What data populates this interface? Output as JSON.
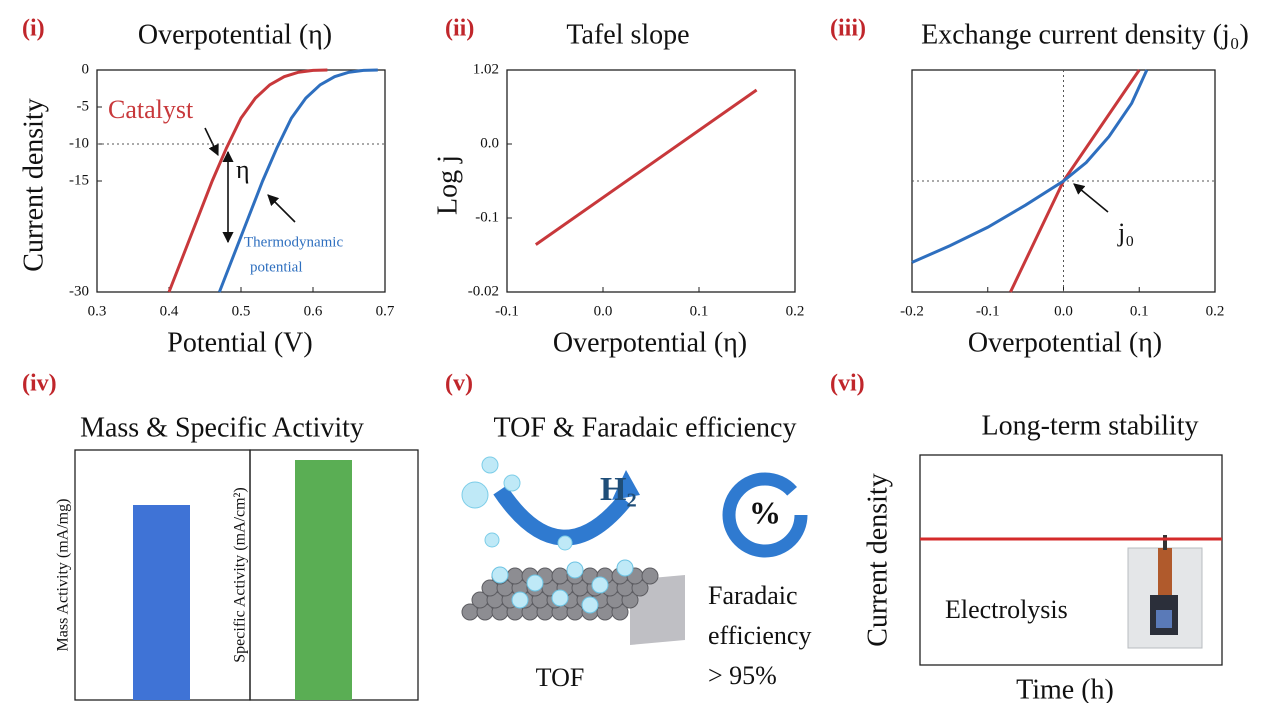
{
  "chart_data": [
    {
      "type": "line",
      "panel": "(i)",
      "title": "Overpotential (η)",
      "xlabel": "Potential (V)",
      "ylabel": "Current density",
      "xlim": [
        0.3,
        0.7
      ],
      "xticks": [
        0.3,
        0.4,
        0.5,
        0.6,
        0.7
      ],
      "ylim": [
        -30,
        0
      ],
      "yticks": [
        0,
        -5,
        -10,
        -15,
        -30
      ],
      "hline": -10,
      "series": [
        {
          "name": "Catalyst",
          "color": "#c8383b",
          "x": [
            0.4,
            0.42,
            0.44,
            0.46,
            0.48,
            0.5,
            0.52,
            0.54,
            0.56,
            0.58,
            0.6,
            0.62
          ],
          "values": [
            -30,
            -25,
            -20,
            -15,
            -10.5,
            -6.5,
            -3.8,
            -2,
            -0.9,
            -0.3,
            -0.05,
            0
          ]
        },
        {
          "color": "#2e6fbf",
          "x": [
            0.47,
            0.49,
            0.51,
            0.53,
            0.55,
            0.57,
            0.59,
            0.61,
            0.63,
            0.65,
            0.67,
            0.69
          ],
          "values": [
            -30,
            -25,
            -20,
            -15,
            -10.5,
            -6.5,
            -3.8,
            -2,
            -0.9,
            -0.3,
            -0.05,
            0
          ]
        }
      ],
      "annotations": [
        "η",
        "Thermodynamic",
        "potential"
      ]
    },
    {
      "type": "line",
      "panel": "(ii)",
      "title": "Tafel slope",
      "xlabel": "Overpotential (η)",
      "ylabel": "Log j",
      "xlim": [
        -0.1,
        0.2
      ],
      "xticks": [
        -0.1,
        {
          "value": 0,
          "label": "0.0"
        },
        0.1,
        0.2
      ],
      "ylim": [
        0,
        3
      ],
      "yticks": [
        {
          "value": 3,
          "label": "1.02"
        },
        {
          "value": 2,
          "label": "0.0"
        },
        {
          "value": 1,
          "label": "-0.1"
        },
        {
          "value": 0,
          "label": "-0.02"
        }
      ],
      "series": [
        {
          "color": "#c8383b",
          "x": [
            -0.07,
            0.16
          ],
          "values": [
            0.64,
            2.73
          ]
        }
      ]
    },
    {
      "type": "line",
      "panel": "(iii)",
      "title": "Exchange current density (j₀)",
      "xlabel": "Overpotential (η)",
      "xlim": [
        -0.2,
        0.2
      ],
      "xticks": [
        -0.2,
        -0.1,
        {
          "value": 0,
          "label": "0.0"
        },
        0.1,
        0.2
      ],
      "ylim": [
        -3,
        3
      ],
      "hline": 0,
      "vline": 0,
      "series": [
        {
          "color": "#c8383b",
          "x": [
            -0.07,
            0,
            0.1
          ],
          "values": [
            -3,
            0,
            3
          ]
        },
        {
          "color": "#2e6fbf",
          "x": [
            -0.2,
            -0.15,
            -0.1,
            -0.05,
            0,
            0.03,
            0.06,
            0.09,
            0.11
          ],
          "values": [
            -2.2,
            -1.75,
            -1.25,
            -0.65,
            0,
            0.5,
            1.2,
            2.1,
            3
          ]
        }
      ],
      "annotations": [
        "j₀"
      ]
    },
    {
      "type": "bar",
      "panel": "(iv)",
      "title": "Mass & Specific Activity",
      "ylabel": "Mass Activity (mA/mg)",
      "ylim": [
        0,
        1
      ],
      "values": [
        0.78
      ],
      "color": "#3f73d6"
    },
    {
      "type": "bar",
      "ylabel": "Specific Activity (mA/cm²)",
      "ylim": [
        0,
        1
      ],
      "values": [
        0.96
      ],
      "color": "#5aae54"
    },
    {
      "type": "line",
      "panel": "(vi)",
      "title": "Long-term stability",
      "xlabel": "Time (h)",
      "ylabel": "Current density",
      "xlim": [
        0,
        1
      ],
      "ylim": [
        0,
        1
      ],
      "series": [
        {
          "color": "#d42a2a",
          "x": [
            0,
            1
          ],
          "values": [
            0.6,
            0.6
          ]
        }
      ],
      "annotations": [
        "Electrolysis"
      ]
    }
  ],
  "panel_v": {
    "panel": "(v)",
    "title": "TOF & Faradaic efficiency",
    "product": "H₂",
    "symbol": "%",
    "label": "TOF",
    "efficiency": [
      "Faradaic",
      "efficiency",
      "> 95%"
    ]
  }
}
